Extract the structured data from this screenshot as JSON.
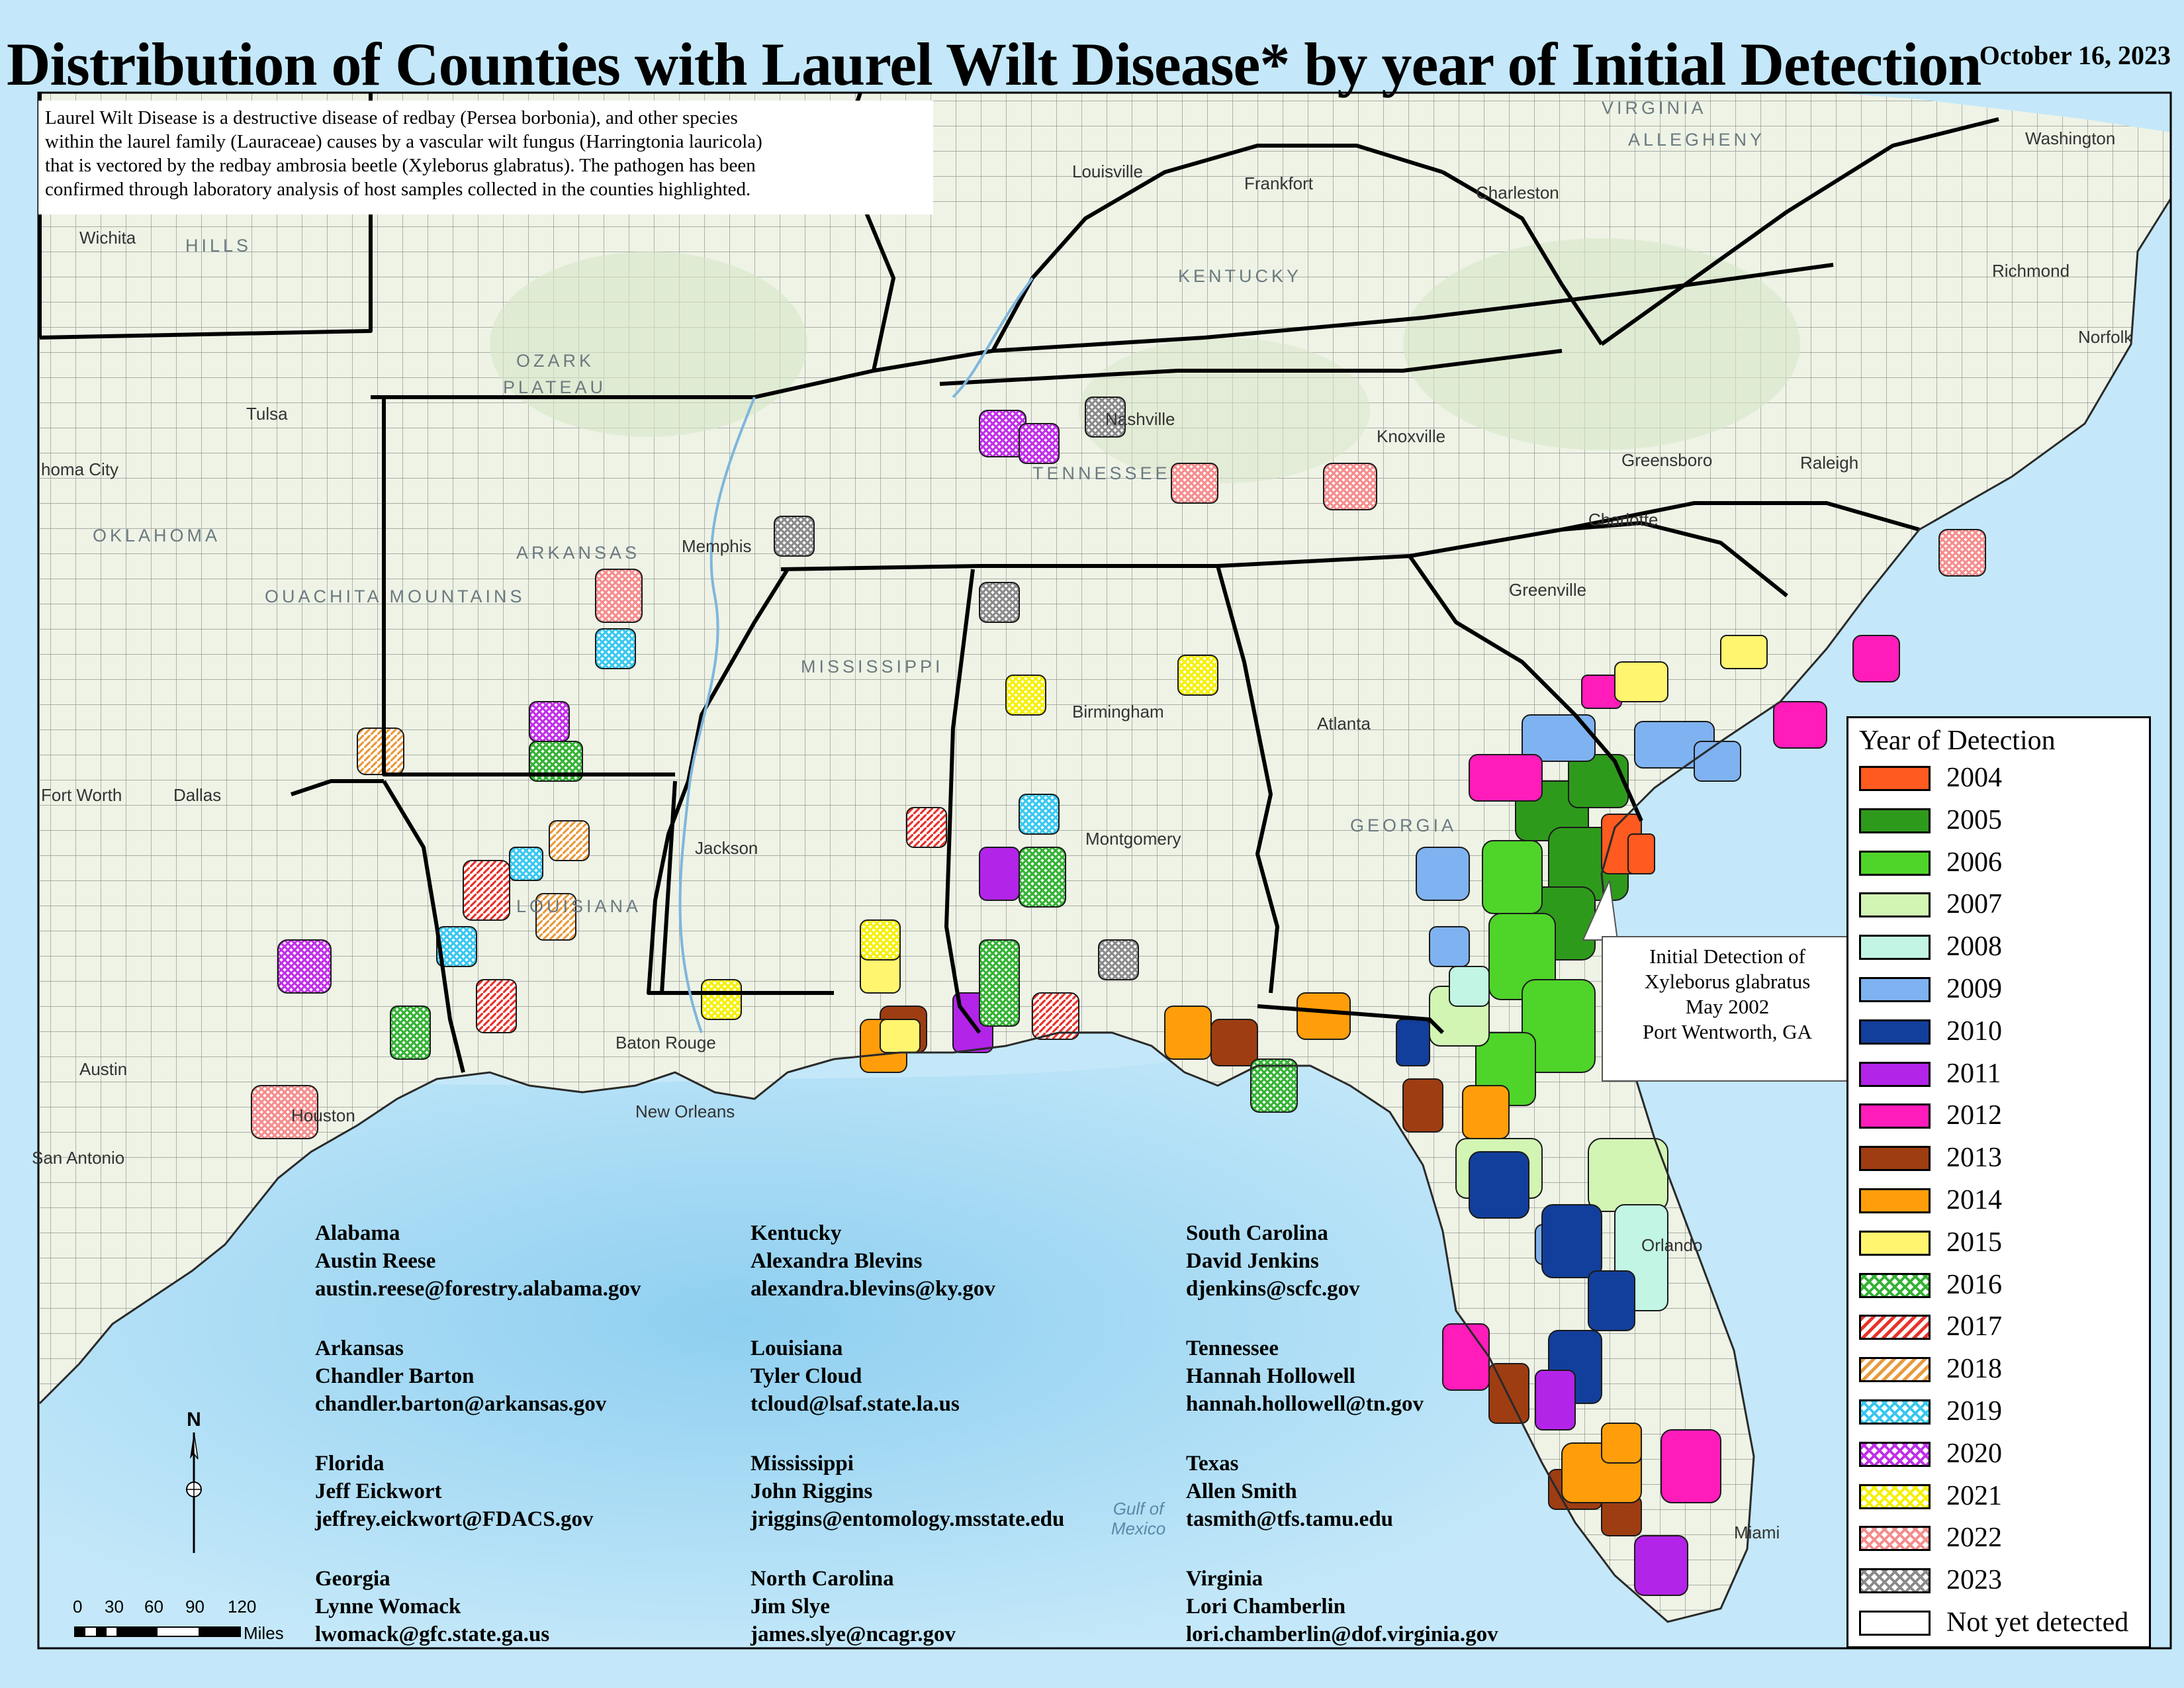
{
  "title": "Distribution of Counties with Laurel Wilt Disease* by year of Initial Detection",
  "date": "October 16, 2023",
  "description": [
    "Laurel Wilt Disease is a destructive disease of redbay (Persea borbonia), and other species",
    "within the laurel family (Lauraceae) causes by a vascular wilt fungus (Harringtonia lauricola)",
    "that is vectored by the redbay ambrosia beetle (Xyleborus glabratus). The pathogen has been",
    "confirmed through laboratory analysis of host samples collected in the counties highlighted."
  ],
  "legend": {
    "title": "Year of Detection",
    "items": [
      {
        "label": "2004",
        "color": "#ff5a1f",
        "pattern": "solid"
      },
      {
        "label": "2005",
        "color": "#2e9a1c",
        "pattern": "solid"
      },
      {
        "label": "2006",
        "color": "#4fd42a",
        "pattern": "solid"
      },
      {
        "label": "2007",
        "color": "#d2f5b4",
        "pattern": "solid"
      },
      {
        "label": "2008",
        "color": "#c2f5e4",
        "pattern": "solid"
      },
      {
        "label": "2009",
        "color": "#7fb2f0",
        "pattern": "solid"
      },
      {
        "label": "2010",
        "color": "#123f9c",
        "pattern": "solid"
      },
      {
        "label": "2011",
        "color": "#b224e8",
        "pattern": "solid"
      },
      {
        "label": "2012",
        "color": "#ff1cba",
        "pattern": "solid"
      },
      {
        "label": "2013",
        "color": "#9e3d12",
        "pattern": "solid"
      },
      {
        "label": "2014",
        "color": "#ff9e0a",
        "pattern": "solid"
      },
      {
        "label": "2015",
        "color": "#fff56e",
        "pattern": "solid"
      },
      {
        "label": "2016",
        "color": "#33b233",
        "pattern": "crosshatch"
      },
      {
        "label": "2017",
        "color": "#e8332b",
        "pattern": "diagonal"
      },
      {
        "label": "2018",
        "color": "#e89a3c",
        "pattern": "diagonal"
      },
      {
        "label": "2019",
        "color": "#36c7f0",
        "pattern": "crosshatch"
      },
      {
        "label": "2020",
        "color": "#c02ee8",
        "pattern": "crosshatch"
      },
      {
        "label": "2021",
        "color": "#f5f000",
        "pattern": "crosshatch"
      },
      {
        "label": "2022",
        "color": "#f58c8c",
        "pattern": "crosshatch"
      },
      {
        "label": "2023",
        "color": "#8a8a8a",
        "pattern": "crosshatch"
      },
      {
        "label": "Not yet detected",
        "color": "#ffffff",
        "pattern": "solid"
      }
    ]
  },
  "callout": [
    "Initial Detection of",
    "Xyleborus glabratus",
    "May 2002",
    "Port Wentworth, GA"
  ],
  "contacts": [
    {
      "state": "Alabama",
      "name": "Austin Reese",
      "email": "austin.reese@forestry.alabama.gov"
    },
    {
      "state": "Arkansas",
      "name": "Chandler Barton",
      "email": "chandler.barton@arkansas.gov"
    },
    {
      "state": "Florida",
      "name": "Jeff Eickwort",
      "email": "jeffrey.eickwort@FDACS.gov"
    },
    {
      "state": "Georgia",
      "name": "Lynne Womack",
      "email": "lwomack@gfc.state.ga.us"
    },
    {
      "state": "Kentucky",
      "name": "Alexandra Blevins",
      "email": "alexandra.blevins@ky.gov"
    },
    {
      "state": "Louisiana",
      "name": "Tyler Cloud",
      "email": "tcloud@lsaf.state.la.us"
    },
    {
      "state": "Mississippi",
      "name": "John Riggins",
      "email": "jriggins@entomology.msstate.edu"
    },
    {
      "state": "North Carolina",
      "name": "Jim Slye",
      "email": "james.slye@ncagr.gov"
    },
    {
      "state": "South Carolina",
      "name": "David Jenkins",
      "email": "djenkins@scfc.gov"
    },
    {
      "state": "Tennessee",
      "name": "Hannah Hollowell",
      "email": "hannah.hollowell@tn.gov"
    },
    {
      "state": "Texas",
      "name": "Allen Smith",
      "email": "tasmith@tfs.tamu.edu"
    },
    {
      "state": "Virginia",
      "name": "Lori Chamberlin",
      "email": "lori.chamberlin@dof.virginia.gov"
    }
  ],
  "places": {
    "louisville": "Louisville",
    "frankfort": "Frankfort",
    "charleston_wv": "Charleston",
    "washington": "Washington",
    "richmond": "Richmond",
    "norfolk": "Norfolk",
    "wichita": "Wichita",
    "tulsa": "Tulsa",
    "oklahoma_city": "homa City",
    "nashville": "Nashville",
    "knoxville": "Knoxville",
    "greensboro": "Greensboro",
    "raleigh": "Raleigh",
    "memphis": "Memphis",
    "charlotte": "Charlotte",
    "greenville": "Greenville",
    "birmingham": "Birmingham",
    "atlanta": "Atlanta",
    "fort_worth": "Fort Worth",
    "dallas": "Dallas",
    "jackson": "Jackson",
    "montgomery": "Montgomery",
    "austin": "Austin",
    "houston": "Houston",
    "baton_rouge": "Baton Rouge",
    "new_orleans": "New Orleans",
    "san_antonio": "San Antonio",
    "miami": "Miami",
    "orlando": "Orlando"
  },
  "regions": {
    "hills": "HILLS",
    "ozark": "OZARK",
    "plateau": "PLATEAU",
    "oklahoma": "OKLAHOMA",
    "ouachita": "OUACHITA MOUNTAINS",
    "arkansas": "ARKANSAS",
    "mississippi": "MISSISSIPPI",
    "louisiana": "LOUISIANA",
    "virginia": "VIRGINIA",
    "allegheny": "ALLEGHENY",
    "kentucky": "KENTUCKY",
    "tennessee": "TENNESSEE",
    "georgia": "GEORGIA"
  },
  "water": {
    "gulf": "Gulf of Mexico"
  },
  "scale": {
    "ticks": [
      "0",
      "30",
      "60",
      "90",
      "120"
    ],
    "units": "Miles"
  },
  "north_label": "N",
  "colors": {
    "land": "#eef3e6",
    "water": "#bfe6f8",
    "water_deep": "#98d2f0",
    "state_border": "#000000",
    "county_border": "#1a1a1a"
  }
}
